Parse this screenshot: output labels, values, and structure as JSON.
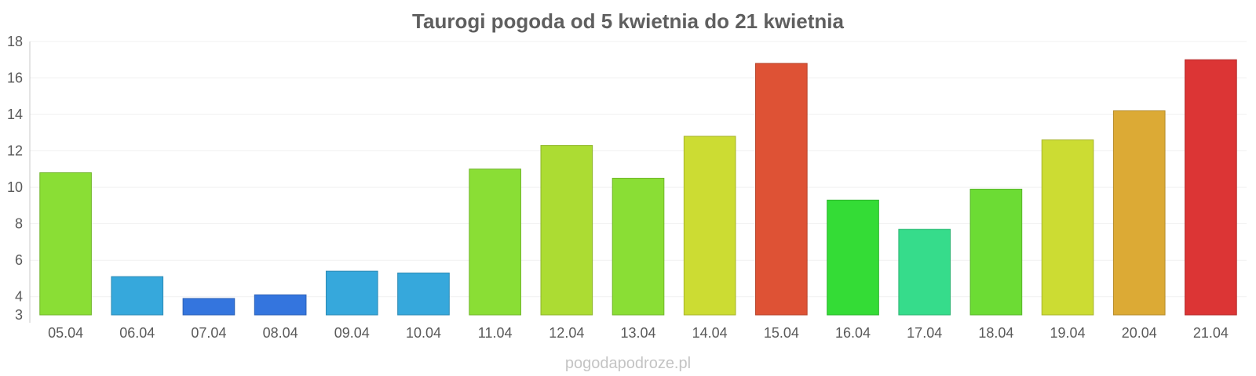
{
  "chart_data": {
    "type": "bar",
    "title": "Taurogi pogoda od 5 kwietnia do 21 kwietnia",
    "xlabel": "",
    "ylabel": "",
    "ylim": [
      3,
      18
    ],
    "y_ticks": [
      3,
      4,
      6,
      8,
      10,
      12,
      14,
      16,
      18
    ],
    "grid": true,
    "legend": "none",
    "categories": [
      "05.04",
      "06.04",
      "07.04",
      "08.04",
      "09.04",
      "10.04",
      "11.04",
      "12.04",
      "13.04",
      "14.04",
      "15.04",
      "16.04",
      "17.04",
      "18.04",
      "19.04",
      "20.04",
      "21.04"
    ],
    "values": [
      10.8,
      5.1,
      3.9,
      4.1,
      5.4,
      5.3,
      11.0,
      12.3,
      10.5,
      12.8,
      16.8,
      9.3,
      7.7,
      9.9,
      12.6,
      14.2,
      17.0
    ],
    "colors": [
      "#8ade35",
      "#36a8dc",
      "#3475de",
      "#3475de",
      "#36a8dc",
      "#36a8dc",
      "#8ade35",
      "#acdc33",
      "#8ade35",
      "#ccdc33",
      "#de5235",
      "#34dc36",
      "#36dc8b",
      "#6cdc34",
      "#ccdc33",
      "#dcaa35",
      "#dc3535"
    ]
  },
  "watermark": "pogodapodroze.pl"
}
